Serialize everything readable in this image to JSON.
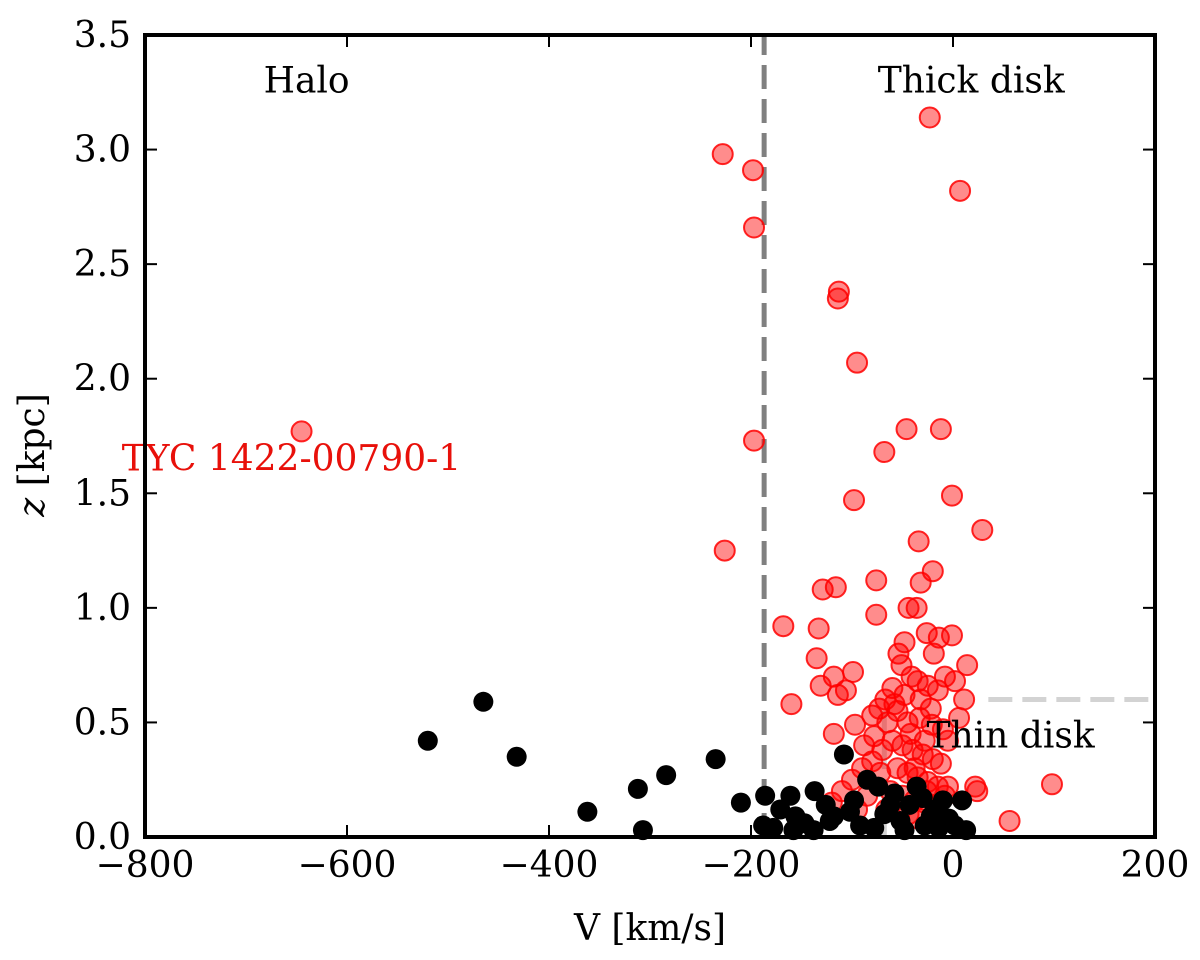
{
  "chart_data": {
    "type": "scatter",
    "title": "",
    "xlabel": "V [km/s]",
    "ylabel": "z [kpc]",
    "ylabel_italic": "z",
    "ylabel_rest": " [kpc]",
    "xlim": [
      -800,
      200
    ],
    "ylim": [
      0.0,
      3.5
    ],
    "xticks": [
      -800,
      -600,
      -400,
      -200,
      0,
      200
    ],
    "xtick_labels": [
      "−800",
      "−600",
      "−400",
      "−200",
      "0",
      "200"
    ],
    "yticks": [
      0.0,
      0.5,
      1.0,
      1.5,
      2.0,
      2.5,
      3.0,
      3.5
    ],
    "ytick_labels": [
      "0.0",
      "0.5",
      "1.0",
      "1.5",
      "2.0",
      "2.5",
      "3.0",
      "3.5"
    ],
    "grid": false,
    "colors": {
      "red": "#ff0000",
      "black": "#000000",
      "dark_dashed": "#808080",
      "light_dashed": "#d3d3d3",
      "label_red": "#e8100a"
    },
    "annotations": {
      "halo": {
        "text": "Halo",
        "x": -640,
        "y": 3.25
      },
      "thick_disk": {
        "text": "Thick disk",
        "x": 18,
        "y": 3.25
      },
      "thin_disk": {
        "text": "Thin disk",
        "x": 57,
        "y": 0.39
      },
      "star_label": {
        "text": "TYC 1422-00790-1",
        "x": -655,
        "y": 1.6
      }
    },
    "reference_lines": [
      {
        "name": "halo-thick-boundary",
        "orientation": "vertical",
        "x": -187,
        "y_range": [
          0,
          3.5
        ],
        "color": "dark_dashed"
      },
      {
        "name": "thin-disk-vertical",
        "orientation": "vertical",
        "x": -68,
        "y_range": [
          0,
          0.6
        ],
        "color": "light_dashed"
      },
      {
        "name": "thin-disk-horizontal",
        "orientation": "horizontal",
        "y": 0.6,
        "x_range": [
          35,
          200
        ],
        "color": "light_dashed"
      }
    ],
    "series": [
      {
        "name": "red stars",
        "color": "red",
        "points": [
          [
            -645,
            1.77
          ],
          [
            -228,
            2.98
          ],
          [
            -198,
            2.91
          ],
          [
            -197,
            2.66
          ],
          [
            -197,
            1.73
          ],
          [
            -226,
            1.25
          ],
          [
            -23,
            3.14
          ],
          [
            7,
            2.82
          ],
          [
            -113,
            2.38
          ],
          [
            -114,
            2.35
          ],
          [
            -95,
            2.07
          ],
          [
            -46,
            1.78
          ],
          [
            -12,
            1.78
          ],
          [
            -68,
            1.68
          ],
          [
            -98,
            1.47
          ],
          [
            -1,
            1.49
          ],
          [
            29,
            1.34
          ],
          [
            -34,
            1.29
          ],
          [
            -20,
            1.16
          ],
          [
            -32,
            1.11
          ],
          [
            -76,
            1.12
          ],
          [
            -129,
            1.08
          ],
          [
            -116,
            1.09
          ],
          [
            -168,
            0.92
          ],
          [
            -133,
            0.91
          ],
          [
            -76,
            0.97
          ],
          [
            -44,
            1.0
          ],
          [
            -36,
            1.0
          ],
          [
            -26,
            0.89
          ],
          [
            -14,
            0.87
          ],
          [
            -1,
            0.88
          ],
          [
            -135,
            0.78
          ],
          [
            -118,
            0.7
          ],
          [
            -99,
            0.72
          ],
          [
            -131,
            0.66
          ],
          [
            -114,
            0.62
          ],
          [
            -106,
            0.64
          ],
          [
            -160,
            0.58
          ],
          [
            -118,
            0.45
          ],
          [
            -97,
            0.49
          ],
          [
            -80,
            0.53
          ],
          [
            -54,
            0.8
          ],
          [
            -51,
            0.75
          ],
          [
            -48,
            0.85
          ],
          [
            -19,
            0.8
          ],
          [
            -8,
            0.7
          ],
          [
            2,
            0.68
          ],
          [
            14,
            0.75
          ],
          [
            11,
            0.6
          ],
          [
            6,
            0.52
          ],
          [
            -41,
            0.7
          ],
          [
            -35,
            0.68
          ],
          [
            -25,
            0.66
          ],
          [
            -15,
            0.64
          ],
          [
            -60,
            0.65
          ],
          [
            -67,
            0.6
          ],
          [
            -73,
            0.56
          ],
          [
            -55,
            0.55
          ],
          [
            -45,
            0.5
          ],
          [
            -33,
            0.52
          ],
          [
            -21,
            0.49
          ],
          [
            -10,
            0.47
          ],
          [
            -5,
            0.42
          ],
          [
            -60,
            0.42
          ],
          [
            -50,
            0.4
          ],
          [
            -40,
            0.38
          ],
          [
            -30,
            0.36
          ],
          [
            -20,
            0.34
          ],
          [
            -12,
            0.32
          ],
          [
            -70,
            0.38
          ],
          [
            -80,
            0.33
          ],
          [
            -90,
            0.3
          ],
          [
            -55,
            0.3
          ],
          [
            -45,
            0.28
          ],
          [
            -35,
            0.26
          ],
          [
            -25,
            0.24
          ],
          [
            -15,
            0.22
          ],
          [
            -5,
            0.22
          ],
          [
            -62,
            0.2
          ],
          [
            -50,
            0.18
          ],
          [
            -38,
            0.16
          ],
          [
            -28,
            0.15
          ],
          [
            -18,
            0.14
          ],
          [
            -65,
            0.5
          ],
          [
            -42,
            0.45
          ],
          [
            -28,
            0.42
          ],
          [
            -32,
            0.6
          ],
          [
            -22,
            0.56
          ],
          [
            -48,
            0.62
          ],
          [
            -58,
            0.58
          ],
          [
            -38,
            0.3
          ],
          [
            -26,
            0.2
          ],
          [
            -8,
            0.18
          ],
          [
            -100,
            0.25
          ],
          [
            -110,
            0.2
          ],
          [
            -120,
            0.15
          ],
          [
            -85,
            0.18
          ],
          [
            -95,
            0.12
          ],
          [
            22,
            0.22
          ],
          [
            24,
            0.2
          ],
          [
            56,
            0.07
          ],
          [
            98,
            0.23
          ],
          [
            -78,
            0.44
          ],
          [
            -88,
            0.4
          ],
          [
            -72,
            0.28
          ],
          [
            -66,
            0.12
          ],
          [
            -44,
            0.1
          ],
          [
            -34,
            0.08
          ],
          [
            -18,
            0.1
          ]
        ]
      },
      {
        "name": "black stars",
        "color": "black",
        "points": [
          [
            -520,
            0.42
          ],
          [
            -465,
            0.59
          ],
          [
            -432,
            0.35
          ],
          [
            -362,
            0.11
          ],
          [
            -312,
            0.21
          ],
          [
            -307,
            0.03
          ],
          [
            -284,
            0.27
          ],
          [
            -235,
            0.34
          ],
          [
            -210,
            0.15
          ],
          [
            -186,
            0.18
          ],
          [
            -188,
            0.05
          ],
          [
            -171,
            0.12
          ],
          [
            -161,
            0.18
          ],
          [
            -156,
            0.09
          ],
          [
            -147,
            0.06
          ],
          [
            -137,
            0.2
          ],
          [
            -126,
            0.14
          ],
          [
            -118,
            0.09
          ],
          [
            -108,
            0.36
          ],
          [
            -98,
            0.16
          ],
          [
            -85,
            0.25
          ],
          [
            -78,
            0.04
          ],
          [
            -68,
            0.1
          ],
          [
            -58,
            0.19
          ],
          [
            -52,
            0.07
          ],
          [
            -43,
            0.14
          ],
          [
            -36,
            0.22
          ],
          [
            -28,
            0.05
          ],
          [
            -18,
            0.12
          ],
          [
            -10,
            0.16
          ],
          [
            -4,
            0.08
          ],
          [
            9,
            0.16
          ],
          [
            13,
            0.03
          ],
          [
            -138,
            0.03
          ],
          [
            -92,
            0.05
          ],
          [
            -62,
            0.14
          ],
          [
            -30,
            0.17
          ],
          [
            -14,
            0.04
          ],
          [
            -178,
            0.04
          ],
          [
            -122,
            0.07
          ],
          [
            -74,
            0.22
          ],
          [
            -48,
            0.03
          ],
          [
            -22,
            0.09
          ],
          [
            -102,
            0.11
          ],
          [
            2,
            0.05
          ],
          [
            -158,
            0.03
          ]
        ]
      }
    ]
  }
}
